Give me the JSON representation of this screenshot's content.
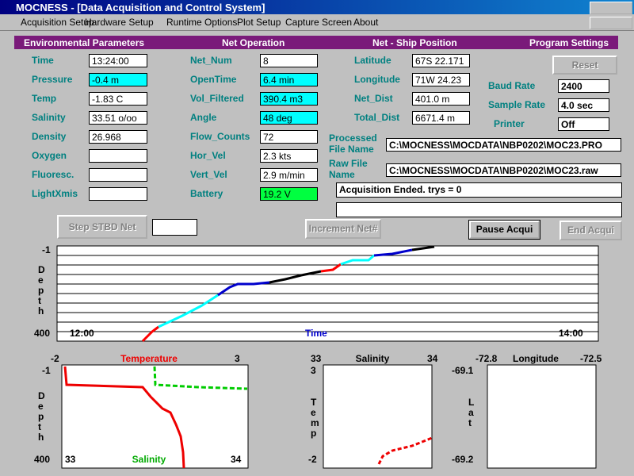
{
  "window": {
    "title": "MOCNESS - [Data Acquisition and Control System]"
  },
  "menu": [
    "Acquisition Setup",
    "Hardware Setup",
    "Runtime Options",
    "Plot Setup",
    "Capture Screen",
    "About"
  ],
  "sections": [
    "Environmental Parameters",
    "Net Operation",
    "Net - Ship Position",
    "Program Settings"
  ],
  "environmental": [
    {
      "label": "Time",
      "value": "13:24:00"
    },
    {
      "label": "Pressure",
      "value": "-0.4 m",
      "bg": "#00ffff"
    },
    {
      "label": "Temp",
      "value": "-1.83 C"
    },
    {
      "label": "Salinity",
      "value": "33.51 o/oo"
    },
    {
      "label": "Density",
      "value": "26.968"
    },
    {
      "label": "Oxygen"
    },
    {
      "label": "Fluoresc."
    },
    {
      "label": "LightXmis"
    }
  ],
  "net_operation": [
    {
      "label": "Net_Num",
      "value": "8"
    },
    {
      "label": "OpenTime",
      "value": "6.4 min",
      "bg": "#00ffff"
    },
    {
      "label": "Vol_Filtered",
      "value": "390.4 m3",
      "bg": "#00ffff"
    },
    {
      "label": "Angle",
      "value": "48 deg",
      "bg": "#00ffff"
    },
    {
      "label": "Flow_Counts",
      "value": "72"
    },
    {
      "label": "Hor_Vel",
      "value": "2.3 kts"
    },
    {
      "label": "Vert_Vel",
      "value": "2.9 m/min"
    },
    {
      "label": "Battery",
      "value": "19.2 V",
      "bg": "#00ff40"
    }
  ],
  "position": [
    {
      "label": "Latitude",
      "value": "67S 22.171"
    },
    {
      "label": "Longitude",
      "value": "71W 24.23"
    },
    {
      "label": "Net_Dist",
      "value": "401.0 m"
    },
    {
      "label": "Total_Dist",
      "value": "6671.4 m"
    }
  ],
  "settings": {
    "reset": "Reset",
    "items": [
      {
        "label": "Baud Rate",
        "value": "2400"
      },
      {
        "label": "Sample Rate",
        "value": "4.0 sec"
      },
      {
        "label": "Printer",
        "value": "Off"
      }
    ]
  },
  "files": [
    {
      "label": "Processed File Name",
      "value": "C:\\MOCNESS\\MOCDATA\\NBP0202\\MOC23.PRO"
    },
    {
      "label": "Raw File Name",
      "value": "C:\\MOCNESS\\MOCDATA\\NBP0202\\MOC23.raw"
    }
  ],
  "status": "Acquisition Ended. trys = 0",
  "buttons": [
    "Step STBD Net",
    "Increment Net#",
    "Pause Acqui",
    "End Acqui"
  ],
  "depth_time_plot": {
    "y_label": "Depth",
    "y_top": "-1",
    "y_bottom": "400",
    "x_start": "12:00",
    "x_label": "Time",
    "x_end": "14:00"
  },
  "profile_plots": [
    {
      "x_min": "-2",
      "x_label": "Temperature",
      "x_max": "3",
      "y_top": "-1",
      "y_bottom": "400",
      "y_label": "Depth",
      "x2_min": "33",
      "x2_label": "Salinity",
      "x2_max": "34"
    },
    {
      "x_min": "33",
      "x_label": "Salinity",
      "x_max": "34",
      "y_top": "3",
      "y_bottom": "-2",
      "y_label": "Temp"
    },
    {
      "x_min": "-72.8",
      "x_label": "Longitude",
      "x_max": "-72.5",
      "y_top": "-69.1",
      "y_bottom": "-69.2",
      "y_label": "Lat"
    }
  ]
}
